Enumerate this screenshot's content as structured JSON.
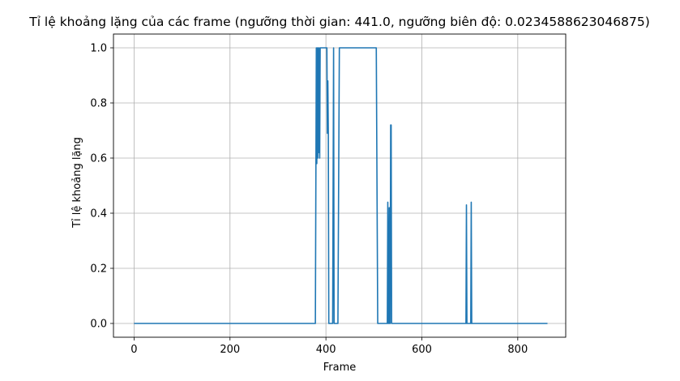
{
  "chart_data": {
    "type": "line",
    "title": "Tỉ lệ khoảng lặng của các frame (ngưỡng thời gian: 441.0, ngưỡng biên độ: 0.0234588623046875)",
    "xlabel": "Frame",
    "ylabel": "Tỉ lệ khoảng lặng",
    "xlim": [
      -43,
      900
    ],
    "ylim": [
      -0.05,
      1.05
    ],
    "xticks": [
      0,
      200,
      400,
      600,
      800
    ],
    "yticks": [
      0.0,
      0.2,
      0.4,
      0.6,
      0.8,
      1.0
    ],
    "xtick_labels": [
      "0",
      "200",
      "400",
      "600",
      "800"
    ],
    "ytick_labels": [
      "0.0",
      "0.2",
      "0.4",
      "0.6",
      "0.8",
      "1.0"
    ],
    "grid": true,
    "line_color": "#1f77b4",
    "series": [
      {
        "x": [
          0,
          378,
          380,
          381,
          382,
          383,
          384,
          385,
          386,
          387,
          388,
          390,
          400,
          402,
          403,
          404,
          405,
          406,
          408,
          410,
          412,
          414,
          416,
          417,
          418,
          420,
          422,
          425,
          428,
          432,
          440,
          480,
          505,
          508,
          510,
          520,
          528,
          529,
          530,
          531,
          532,
          533,
          534,
          535,
          536,
          537,
          538,
          540,
          560,
          600,
          690,
          692,
          693,
          694,
          695,
          700,
          702,
          703,
          704,
          705,
          710,
          750,
          800,
          862
        ],
        "y": [
          0,
          0,
          1.0,
          0.58,
          1.0,
          0.6,
          1.0,
          0.62,
          1.0,
          0.6,
          1.0,
          1.0,
          1.0,
          1.0,
          0.69,
          0.88,
          0.69,
          0.0,
          0.0,
          0.0,
          0.0,
          0.0,
          1.0,
          0.0,
          0.0,
          0.0,
          0.0,
          0.0,
          1.0,
          1.0,
          1.0,
          1.0,
          1.0,
          0.0,
          0.0,
          0.0,
          0.0,
          0.44,
          0.0,
          0.0,
          0.42,
          0.0,
          0.0,
          0.72,
          0.72,
          0.0,
          0.0,
          0.0,
          0.0,
          0.0,
          0.0,
          0.0,
          0.43,
          0.0,
          0.0,
          0.0,
          0.0,
          0.44,
          0.0,
          0.0,
          0.0,
          0.0,
          0.0,
          0.0
        ]
      }
    ]
  }
}
